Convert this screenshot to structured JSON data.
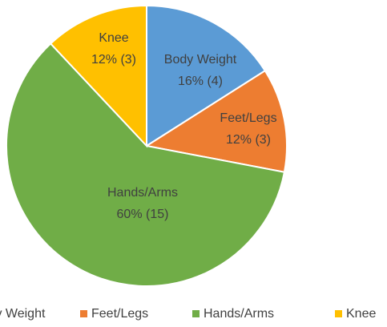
{
  "chart_data": {
    "type": "pie",
    "categories": [
      "Body Weight",
      "Feet/Legs",
      "Hands/Arms",
      "Knee"
    ],
    "values": [
      16,
      12,
      60,
      12
    ],
    "value_labels": [
      "16% (4)",
      "12% (3)",
      "60% (15)",
      "12% (3)"
    ],
    "colors": [
      "#5b9bd5",
      "#ed7d31",
      "#70ad47",
      "#ffc000"
    ],
    "legend": "bottom"
  }
}
